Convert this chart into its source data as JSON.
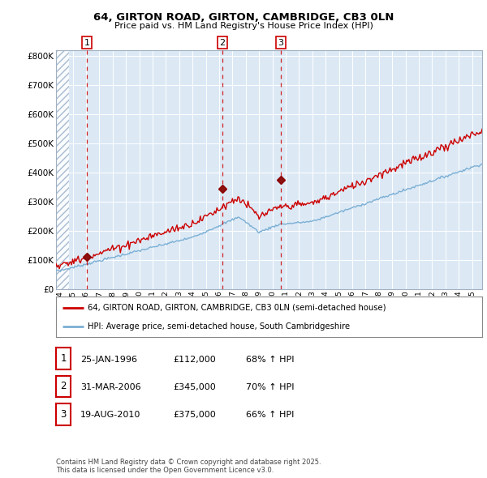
{
  "title1": "64, GIRTON ROAD, GIRTON, CAMBRIDGE, CB3 0LN",
  "title2": "Price paid vs. HM Land Registry's House Price Index (HPI)",
  "plot_bg_color": "#dce9f5",
  "fig_bg_color": "#ffffff",
  "red_line_color": "#cc0000",
  "blue_line_color": "#7bafd4",
  "vline_color": "#cc0000",
  "ylim": [
    0,
    820000
  ],
  "yticks": [
    0,
    100000,
    200000,
    300000,
    400000,
    500000,
    600000,
    700000,
    800000
  ],
  "ytick_labels": [
    "£0",
    "£100K",
    "£200K",
    "£300K",
    "£400K",
    "£500K",
    "£600K",
    "£700K",
    "£800K"
  ],
  "sale_dates": [
    1996.07,
    2006.25,
    2010.64
  ],
  "sale_prices": [
    112000,
    345000,
    375000
  ],
  "sale_labels": [
    "1",
    "2",
    "3"
  ],
  "vline_x": [
    1996.07,
    2006.25,
    2010.64
  ],
  "legend_red": "64, GIRTON ROAD, GIRTON, CAMBRIDGE, CB3 0LN (semi-detached house)",
  "legend_blue": "HPI: Average price, semi-detached house, South Cambridgeshire",
  "table_rows": [
    [
      "1",
      "25-JAN-1996",
      "£112,000",
      "68% ↑ HPI"
    ],
    [
      "2",
      "31-MAR-2006",
      "£345,000",
      "70% ↑ HPI"
    ],
    [
      "3",
      "19-AUG-2010",
      "£375,000",
      "66% ↑ HPI"
    ]
  ],
  "footnote": "Contains HM Land Registry data © Crown copyright and database right 2025.\nThis data is licensed under the Open Government Licence v3.0.",
  "xmin": 1993.75,
  "xmax": 2025.75
}
